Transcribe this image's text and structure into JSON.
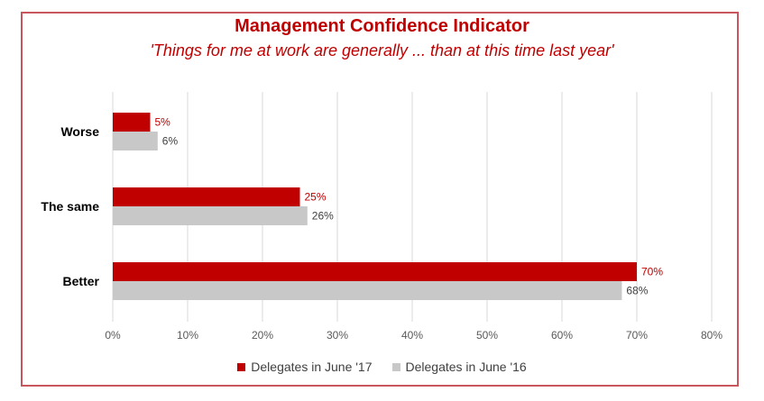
{
  "chart_data": {
    "type": "bar",
    "orientation": "horizontal",
    "title": "Management Confidence Indicator",
    "subtitle": "'Things for me at work are generally ... than at this time last year'",
    "categories": [
      "Worse",
      "The same",
      "Better"
    ],
    "series": [
      {
        "name": "Delegates in June '17",
        "values": [
          5,
          25,
          70
        ],
        "labels": [
          "5%",
          "25%",
          "70%"
        ],
        "color": "#c00000"
      },
      {
        "name": "Delegates in June '16",
        "values": [
          6,
          26,
          68
        ],
        "labels": [
          "6%",
          "26%",
          "68%"
        ],
        "color": "#c8c8c8"
      }
    ],
    "x_ticks": [
      "0%",
      "10%",
      "20%",
      "30%",
      "40%",
      "50%",
      "60%",
      "70%",
      "80%"
    ],
    "xlim": [
      0,
      80
    ],
    "grid": true,
    "legend_position": "bottom"
  },
  "colors": {
    "accent": "#c00000",
    "frame": "#c9565c",
    "secondary_bar": "#c8c8c8",
    "grid": "#d9d9d9"
  }
}
